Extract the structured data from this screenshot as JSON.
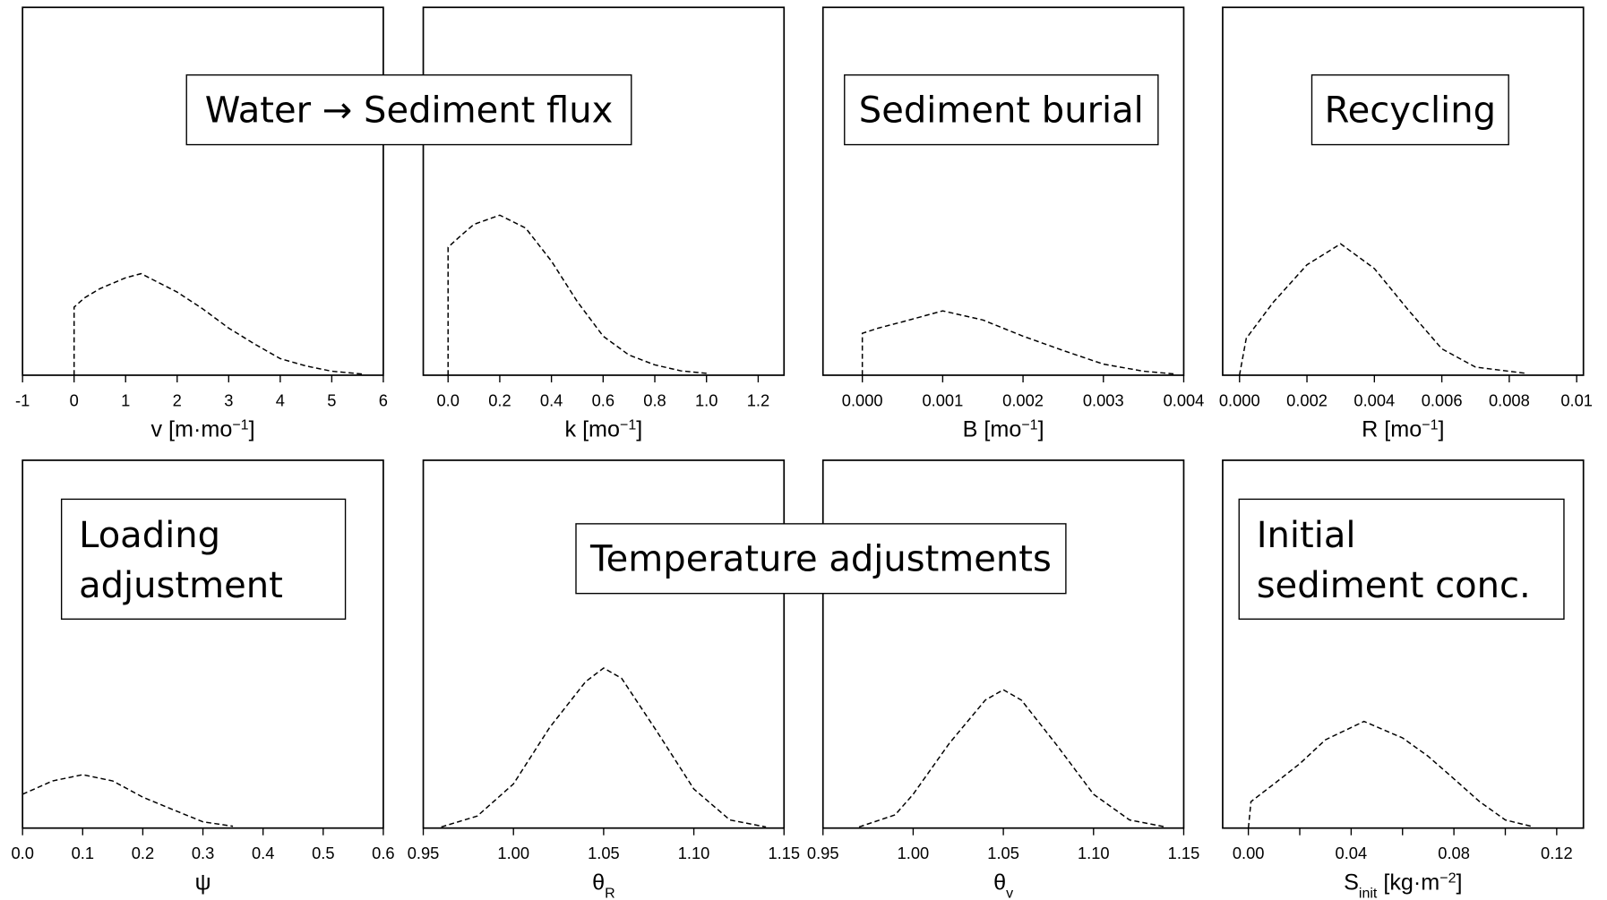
{
  "chart_data": [
    {
      "type": "line",
      "xlabel": [
        "v [m·mo",
        "−1",
        "]"
      ],
      "xlabel_style": [
        "normal",
        "sup",
        "normal"
      ],
      "x": [
        0,
        0,
        0.2,
        0.5,
        1,
        1.3,
        2,
        2.5,
        3,
        3.5,
        4,
        4.5,
        5,
        5.6
      ],
      "values": [
        0,
        18.5,
        21,
        23.5,
        26.5,
        27.6,
        22.6,
        18,
        12.8,
        8.5,
        4.5,
        2.5,
        1.1,
        0.3
      ],
      "xlim": [
        -1,
        6
      ],
      "xticks": [
        -1,
        0,
        1,
        2,
        3,
        4,
        5,
        6
      ],
      "ylim": [
        0,
        100
      ],
      "color": "#000000",
      "dashed": true
    },
    {
      "type": "line",
      "xlabel": [
        "k [mo",
        "−1",
        "]"
      ],
      "xlabel_style": [
        "normal",
        "sup",
        "normal"
      ],
      "x": [
        0,
        0,
        0.05,
        0.1,
        0.2,
        0.3,
        0.4,
        0.5,
        0.6,
        0.7,
        0.8,
        0.9,
        1.0
      ],
      "values": [
        0,
        34.8,
        38,
        41,
        43.5,
        40,
        31,
        20,
        10.6,
        5.5,
        2.8,
        1.2,
        0.5
      ],
      "xlim": [
        -0.096,
        1.3
      ],
      "xticks": [
        {
          "value": 0,
          "label": "0.0"
        },
        0.2,
        0.4,
        0.6,
        0.8,
        {
          "value": 1,
          "label": "1.0"
        },
        1.2
      ],
      "ylim": [
        0,
        100
      ],
      "color": "#000000",
      "dashed": true
    },
    {
      "type": "line",
      "xlabel": [
        "B [mo",
        "−1",
        "]"
      ],
      "xlabel_style": [
        "normal",
        "sup",
        "normal"
      ],
      "x": [
        0,
        0,
        0.0002,
        0.0005,
        0.001,
        0.0015,
        0.002,
        0.0025,
        0.003,
        0.0035,
        0.0039
      ],
      "values": [
        0,
        11.4,
        12.8,
        14.5,
        17.5,
        15,
        10.6,
        6.7,
        3,
        1.1,
        0.3
      ],
      "xlim": [
        -0.00049,
        0.004
      ],
      "xticks": [
        {
          "value": 0,
          "label": "0.000"
        },
        {
          "value": 0.001,
          "label": "0.001"
        },
        {
          "value": 0.002,
          "label": "0.002"
        },
        {
          "value": 0.003,
          "label": "0.003"
        },
        {
          "value": 0.004,
          "label": "0.004"
        }
      ],
      "ylim": [
        0,
        100
      ],
      "color": "#000000",
      "dashed": true
    },
    {
      "type": "line",
      "xlabel": [
        "R [mo",
        "−1",
        "]"
      ],
      "xlabel_style": [
        "normal",
        "sup",
        "normal"
      ],
      "x": [
        0,
        0.0002,
        0.001,
        0.002,
        0.003,
        0.004,
        0.005,
        0.006,
        0.007,
        0.0085
      ],
      "values": [
        0,
        10,
        19.8,
        30,
        35.7,
        29,
        17.8,
        7.2,
        2.2,
        0.5
      ],
      "xlim": [
        -0.0005,
        0.0102
      ],
      "xticks": [
        {
          "value": 0,
          "label": "0.000"
        },
        {
          "value": 0.002,
          "label": "0.002"
        },
        {
          "value": 0.004,
          "label": "0.004"
        },
        {
          "value": 0.006,
          "label": "0.006"
        },
        {
          "value": 0.008,
          "label": "0.008"
        },
        0.01
      ],
      "ylim": [
        0,
        100
      ],
      "color": "#000000",
      "dashed": true
    },
    {
      "type": "line",
      "xlabel": [
        "ψ"
      ],
      "xlabel_style": [
        "normal"
      ],
      "x": [
        0,
        0.05,
        0.1,
        0.15,
        0.2,
        0.25,
        0.3,
        0.35
      ],
      "values": [
        9.2,
        12.8,
        14.5,
        12.8,
        8.4,
        5,
        1.7,
        0.5
      ],
      "xlim": [
        0,
        0.6
      ],
      "xticks": [
        {
          "value": 0,
          "label": "0.0"
        },
        0.1,
        0.2,
        0.3,
        0.4,
        0.5,
        0.6
      ],
      "ylim": [
        0,
        100
      ],
      "color": "#000000",
      "dashed": true
    },
    {
      "type": "line",
      "xlabel": [
        "θ",
        "R"
      ],
      "xlabel_style": [
        "normal",
        "sub"
      ],
      "x": [
        0.96,
        0.98,
        1.0,
        1.02,
        1.04,
        1.05,
        1.06,
        1.08,
        1.1,
        1.12,
        1.14
      ],
      "values": [
        0.3,
        3.3,
        12,
        27.3,
        39.8,
        43.5,
        40.7,
        25.9,
        10.6,
        2.2,
        0.3
      ],
      "xlim": [
        0.95,
        1.15
      ],
      "xticks": [
        0.95,
        {
          "value": 1,
          "label": "1.00"
        },
        1.05,
        {
          "value": 1.1,
          "label": "1.10"
        },
        1.15
      ],
      "ylim": [
        0,
        100
      ],
      "color": "#000000",
      "dashed": true
    },
    {
      "type": "line",
      "xlabel": [
        "θ",
        "v"
      ],
      "xlabel_style": [
        "normal",
        "sub"
      ],
      "x": [
        0.97,
        0.99,
        1.0,
        1.02,
        1.04,
        1.05,
        1.06,
        1.08,
        1.1,
        1.12,
        1.14
      ],
      "values": [
        0.3,
        3.6,
        9.2,
        23,
        34.8,
        37.6,
        34.8,
        22.3,
        9.2,
        2.2,
        0.3
      ],
      "xlim": [
        0.95,
        1.15
      ],
      "xticks": [
        0.95,
        {
          "value": 1,
          "label": "1.00"
        },
        1.05,
        {
          "value": 1.1,
          "label": "1.10"
        },
        1.15
      ],
      "ylim": [
        0,
        100
      ],
      "color": "#000000",
      "dashed": true
    },
    {
      "type": "line",
      "xlabel": [
        "S",
        "init",
        " [kg·m",
        "−2",
        "]"
      ],
      "xlabel_style": [
        "normal",
        "sub",
        "normal",
        "sup",
        "normal"
      ],
      "x": [
        0,
        0.001,
        0.01,
        0.02,
        0.03,
        0.045,
        0.06,
        0.07,
        0.08,
        0.09,
        0.1,
        0.11
      ],
      "values": [
        0,
        7.2,
        12,
        17.5,
        24,
        29,
        24.5,
        19.5,
        13.4,
        7.2,
        2.2,
        0.5
      ],
      "xlim": [
        -0.01,
        0.1304
      ],
      "xticks": [
        {
          "value": 0,
          "label": "0.00"
        },
        0.04,
        0.08,
        0.12
      ],
      "xminor_ticks": [
        0.02,
        0.06,
        0.1
      ],
      "ylim": [
        0,
        100
      ],
      "color": "#000000",
      "dashed": true
    }
  ],
  "annotations": [
    {
      "lines": [
        "Water → Sediment flux"
      ]
    },
    {
      "lines": [
        "Sediment burial"
      ]
    },
    {
      "lines": [
        "Recycling"
      ]
    },
    {
      "lines": [
        "Loading",
        "adjustment"
      ]
    },
    {
      "lines": [
        "Temperature adjustments"
      ]
    },
    {
      "lines": [
        "Initial",
        "sediment conc."
      ]
    }
  ]
}
